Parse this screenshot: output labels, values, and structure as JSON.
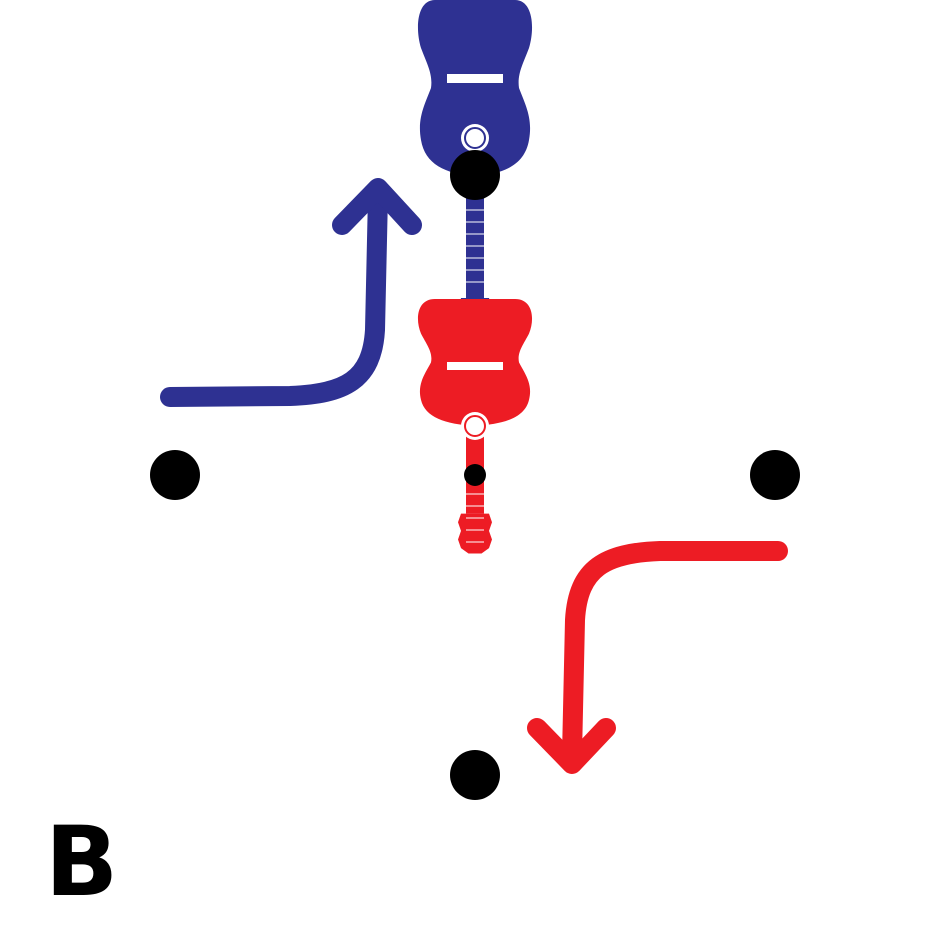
{
  "panel": {
    "label": "B"
  },
  "colors": {
    "background": "#ffffff",
    "blue": "#2e3192",
    "red": "#ed1c24",
    "dot": "#000000",
    "white": "#ffffff"
  },
  "icons": {
    "top_instrument": "guitar-icon",
    "bottom_instrument": "guitar-icon",
    "blue_arrow": "curved-arrow-up-icon",
    "red_arrow": "curved-arrow-down-icon"
  },
  "elements": {
    "dots": [
      {
        "id": "dot-top"
      },
      {
        "id": "dot-left"
      },
      {
        "id": "dot-right"
      },
      {
        "id": "dot-bottom"
      },
      {
        "id": "dot-center-small"
      }
    ]
  }
}
